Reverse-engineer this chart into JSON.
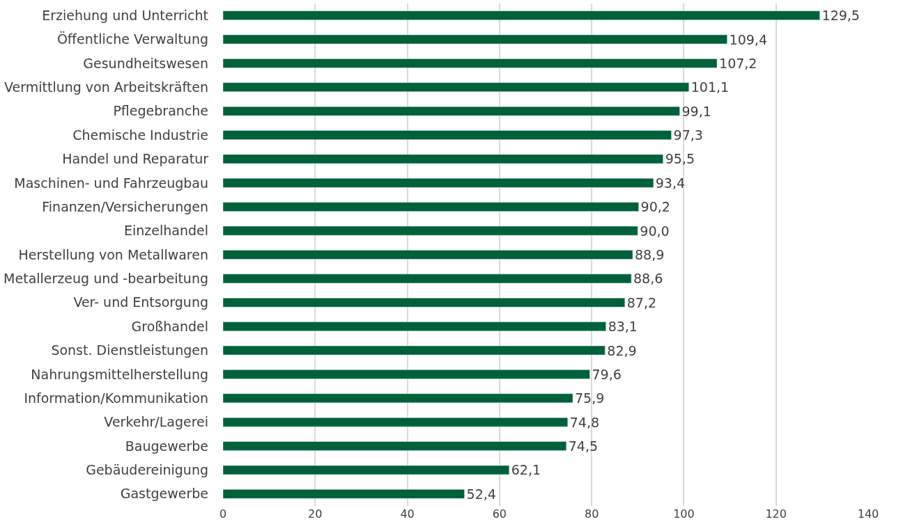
{
  "chart_data": {
    "type": "bar",
    "orientation": "horizontal",
    "categories": [
      "Erziehung und Unterricht",
      "Öffentliche Verwaltung",
      "Gesundheitswesen",
      "Vermittlung von Arbeitskräften",
      "Pflegebranche",
      "Chemische Industrie",
      "Handel und Reparatur",
      "Maschinen- und Fahrzeugbau",
      "Finanzen/Versicherungen",
      "Einzelhandel",
      "Herstellung von Metallwaren",
      "Metallerzeug und -bearbeitung",
      "Ver- und Entsorgung",
      "Großhandel",
      "Sonst. Dienstleistungen",
      "Nahrungsmittelherstellung",
      "Information/Kommunikation",
      "Verkehr/Lagerei",
      "Baugewerbe",
      "Gebäudereinigung",
      "Gastgewerbe"
    ],
    "values": [
      129.5,
      109.4,
      107.2,
      101.1,
      99.1,
      97.3,
      95.5,
      93.4,
      90.2,
      90.0,
      88.9,
      88.6,
      87.2,
      83.1,
      82.9,
      79.6,
      75.9,
      74.8,
      74.5,
      62.1,
      52.4
    ],
    "value_labels": [
      "129,5",
      "109,4",
      "107,2",
      "101,1",
      "99,1",
      "97,3",
      "95,5",
      "93,4",
      "90,2",
      "90,0",
      "88,9",
      "88,6",
      "87,2",
      "83,1",
      "82,9",
      "79,6",
      "75,9",
      "74,8",
      "74,5",
      "62,1",
      "52,4"
    ],
    "color": "#00613a",
    "xlim": [
      0,
      140
    ],
    "xticks": [
      0,
      20,
      40,
      60,
      80,
      100,
      120,
      140
    ],
    "grid": "x"
  }
}
